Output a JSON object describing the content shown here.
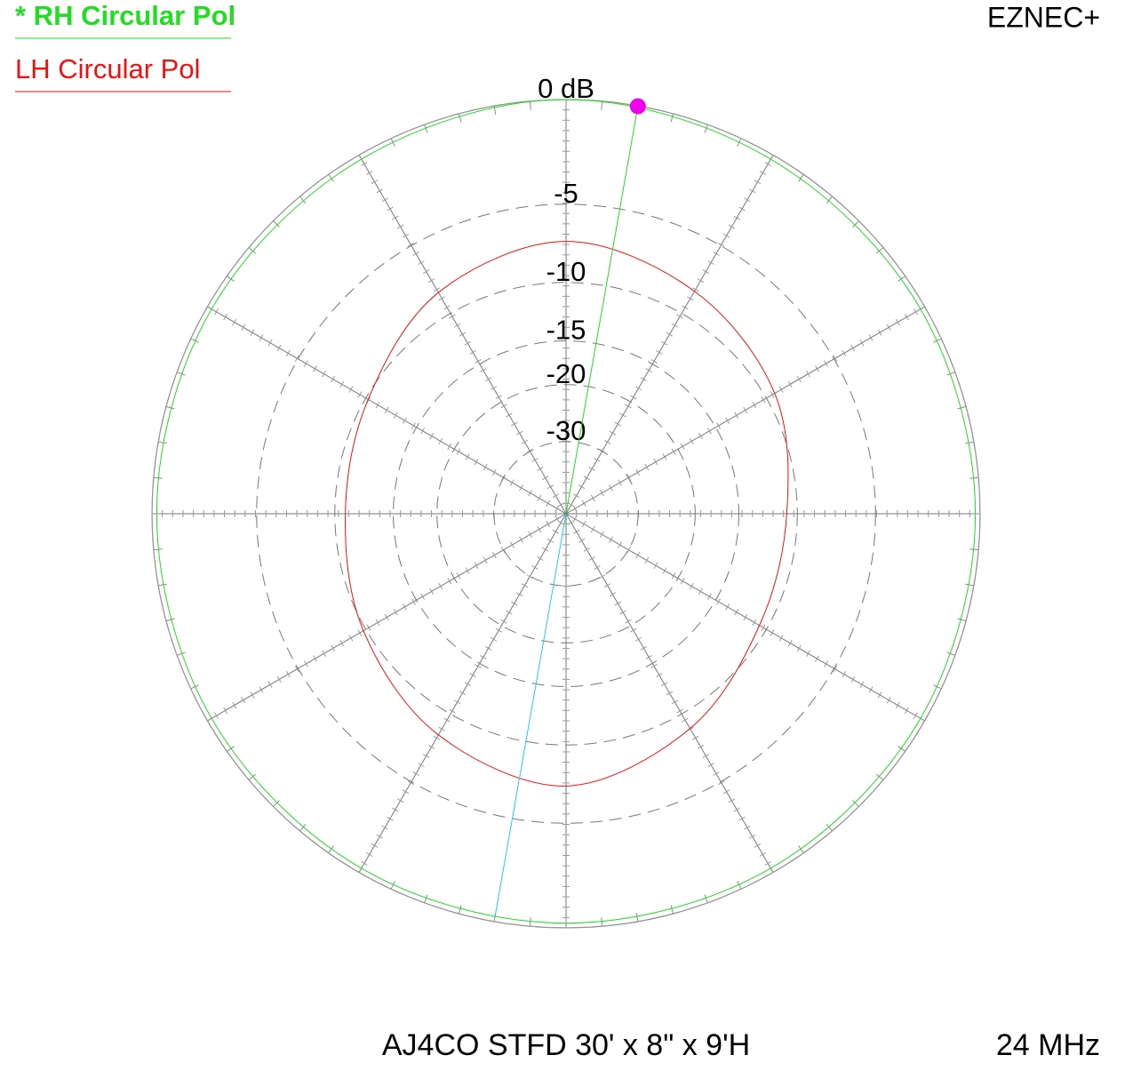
{
  "chart_data": {
    "type": "polar",
    "scale": "arrl-log",
    "rmax": 0,
    "title": "AJ4CO STFD 30' x 8\" x 9'H",
    "program": "EZNEC+",
    "frequency": "24 MHz",
    "rticks": [
      {
        "value": 0,
        "label": "0 dB"
      },
      -5,
      -10,
      -15,
      -20,
      -30
    ],
    "x": [
      0,
      30,
      60,
      90,
      120,
      150,
      180,
      210,
      240,
      270,
      300,
      330
    ],
    "cursor_angle": 10,
    "series": [
      {
        "name": "* RH Circular Pol",
        "color": "#22dd22",
        "values": [
          0,
          -0.2,
          -0.2,
          -0.2,
          -0.2,
          -0.2,
          -0.2,
          -0.2,
          -0.2,
          -0.2,
          -0.2,
          -0.2
        ]
      },
      {
        "name": "LH Circular Pol",
        "color": "#ee1111",
        "values": [
          -7.2,
          -8.2,
          -9.3,
          -10.8,
          -10.6,
          -8.8,
          -7.2,
          -8.3,
          -9.8,
          -10.8,
          -10.2,
          -8.3
        ]
      }
    ]
  }
}
